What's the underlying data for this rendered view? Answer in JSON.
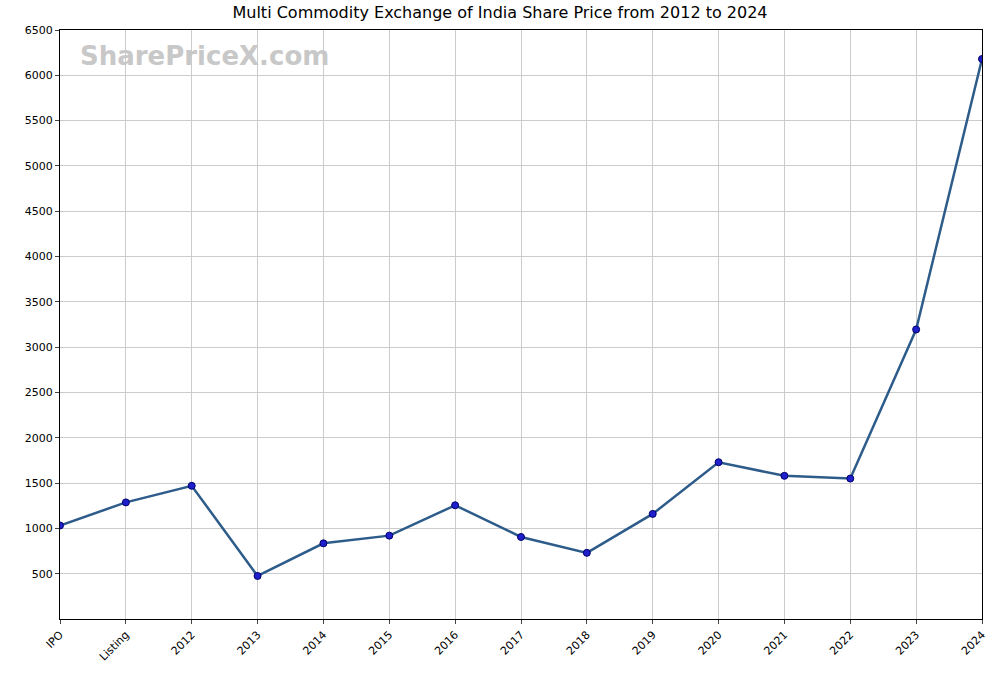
{
  "chart_data": {
    "type": "line",
    "title": "Multi Commodity Exchange of India Share Price from 2012 to 2024",
    "watermark": "SharePriceX.com",
    "categories": [
      "IPO",
      "Listing",
      "2012",
      "2013",
      "2014",
      "2015",
      "2016",
      "2017",
      "2018",
      "2019",
      "2020",
      "2021",
      "2022",
      "2023",
      "2024"
    ],
    "values": [
      1032,
      1287,
      1470,
      475,
      835,
      920,
      1255,
      905,
      730,
      1160,
      1730,
      1580,
      1550,
      3195,
      6180
    ],
    "color": "#2e5c8a",
    "marker": "circle",
    "ylim": [
      0,
      6500
    ],
    "yticks": [
      500,
      1000,
      1500,
      2000,
      2500,
      3000,
      3500,
      4000,
      4500,
      5000,
      5500,
      6000,
      6500
    ],
    "grid": true
  }
}
